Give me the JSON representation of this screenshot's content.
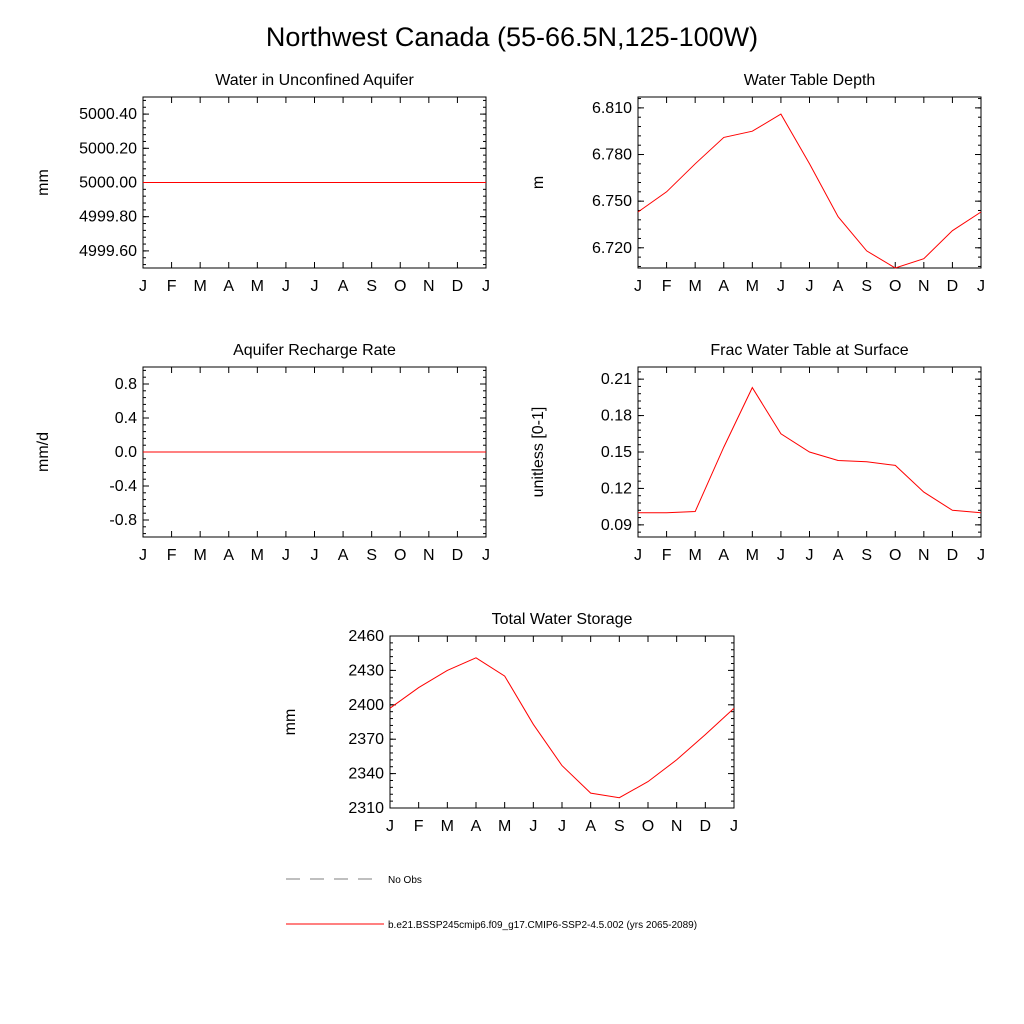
{
  "title": "Northwest Canada (55-66.5N,125-100W)",
  "months": [
    "J",
    "F",
    "M",
    "A",
    "M",
    "J",
    "J",
    "A",
    "S",
    "O",
    "N",
    "D",
    "J"
  ],
  "legend": {
    "obs_label": "No Obs",
    "model_label": "b.e21.BSSP245cmip6.f09_g17.CMIP6-SSP2-4.5.002 (yrs 2065-2089)",
    "model_color": "#ff0000",
    "obs_color": "#7f7f7f"
  },
  "chart_data": [
    {
      "type": "line",
      "title": "Water in Unconfined Aquifer",
      "ylabel": "mm",
      "ylim": [
        4999.5,
        5000.5
      ],
      "yticks": [
        4999.6,
        4999.8,
        5000.0,
        5000.2,
        5000.4
      ],
      "yticklabels": [
        "4999.60",
        "4999.80",
        "5000.00",
        "5000.20",
        "5000.40"
      ],
      "x": [
        "J",
        "F",
        "M",
        "A",
        "M",
        "J",
        "J",
        "A",
        "S",
        "O",
        "N",
        "D",
        "J"
      ],
      "series": [
        {
          "values": [
            5000,
            5000,
            5000,
            5000,
            5000,
            5000,
            5000,
            5000,
            5000,
            5000,
            5000,
            5000,
            5000
          ]
        }
      ]
    },
    {
      "type": "line",
      "title": "Water Table Depth",
      "ylabel": "m",
      "ylim": [
        6.707,
        6.817
      ],
      "yticks": [
        6.72,
        6.75,
        6.78,
        6.81
      ],
      "yticklabels": [
        "6.720",
        "6.750",
        "6.780",
        "6.810"
      ],
      "x": [
        "J",
        "F",
        "M",
        "A",
        "M",
        "J",
        "J",
        "A",
        "S",
        "O",
        "N",
        "D",
        "J"
      ],
      "series": [
        {
          "values": [
            6.743,
            6.756,
            6.774,
            6.791,
            6.795,
            6.806,
            6.774,
            6.74,
            6.718,
            6.707,
            6.713,
            6.731,
            6.743
          ]
        }
      ]
    },
    {
      "type": "line",
      "title": "Aquifer Recharge Rate",
      "ylabel": "mm/d",
      "ylim": [
        -1.0,
        1.0
      ],
      "yticks": [
        -0.8,
        -0.4,
        0.0,
        0.4,
        0.8
      ],
      "yticklabels": [
        "-0.8",
        "-0.4",
        "0.0",
        "0.4",
        "0.8"
      ],
      "x": [
        "J",
        "F",
        "M",
        "A",
        "M",
        "J",
        "J",
        "A",
        "S",
        "O",
        "N",
        "D",
        "J"
      ],
      "series": [
        {
          "values": [
            0,
            0,
            0,
            0,
            0,
            0,
            0,
            0,
            0,
            0,
            0,
            0,
            0
          ]
        }
      ]
    },
    {
      "type": "line",
      "title": "Frac Water Table at Surface",
      "ylabel": "unitless [0-1]",
      "ylim": [
        0.08,
        0.22
      ],
      "yticks": [
        0.09,
        0.12,
        0.15,
        0.18,
        0.21
      ],
      "yticklabels": [
        "0.09",
        "0.12",
        "0.15",
        "0.18",
        "0.21"
      ],
      "x": [
        "J",
        "F",
        "M",
        "A",
        "M",
        "J",
        "J",
        "A",
        "S",
        "O",
        "N",
        "D",
        "J"
      ],
      "series": [
        {
          "values": [
            0.1,
            0.1,
            0.101,
            0.154,
            0.203,
            0.165,
            0.15,
            0.143,
            0.142,
            0.139,
            0.117,
            0.102,
            0.1
          ]
        }
      ]
    },
    {
      "type": "line",
      "title": "Total Water Storage",
      "ylabel": "mm",
      "ylim": [
        2310,
        2460
      ],
      "yticks": [
        2310,
        2340,
        2370,
        2400,
        2430,
        2460
      ],
      "yticklabels": [
        "2310",
        "2340",
        "2370",
        "2400",
        "2430",
        "2460"
      ],
      "x": [
        "J",
        "F",
        "M",
        "A",
        "M",
        "J",
        "J",
        "A",
        "S",
        "O",
        "N",
        "D",
        "J"
      ],
      "series": [
        {
          "values": [
            2397,
            2415,
            2430,
            2441,
            2425,
            2383,
            2347,
            2323,
            2319,
            2333,
            2352,
            2374,
            2397
          ]
        }
      ]
    }
  ]
}
